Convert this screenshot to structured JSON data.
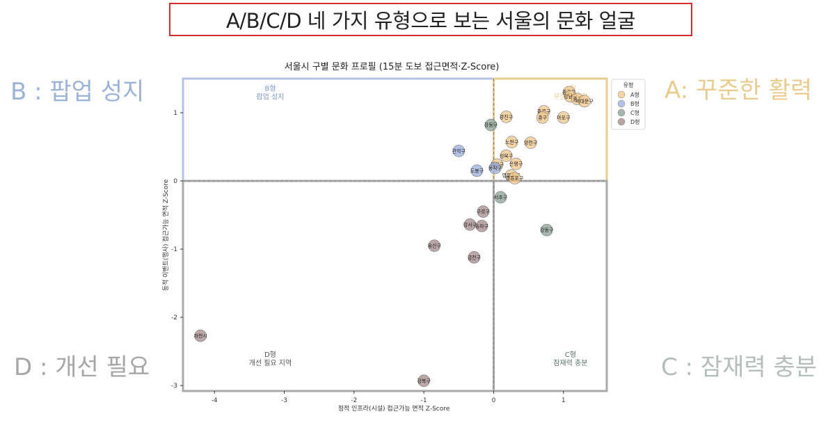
{
  "banner_title": "A/B/C/D 네 가지 유형으로 보는 서울의 문화 얼굴",
  "side_labels": {
    "A": "A: 꾸준한 활력",
    "B": "B : 팝업 성지",
    "C": "C : 잠재력 충분",
    "D": "D : 개선 필요"
  },
  "colors": {
    "A": "#f2c98f",
    "B": "#9fb2de",
    "C": "#8ea597",
    "D": "#a88d8f",
    "A_box": "#ebcc8f",
    "B_box": "#b3c3e3",
    "CD_box": "#a9a9a9",
    "banner_border": "#d22b2b"
  },
  "chart_data": {
    "type": "scatter",
    "title": "서울시 구별 문화 프로필 (15분 도보 접근면적·Z-Score)",
    "xlabel": "정적 인프라(시설) 접근가능 면적 Z-Score",
    "ylabel": "동적 이벤트(행사) 접근가능 면적 Z-Score",
    "xlim": [
      -4.45,
      1.62
    ],
    "ylim": [
      -3.08,
      1.5
    ],
    "x_ticks": [
      -4,
      -3,
      -2,
      -1,
      0,
      1
    ],
    "y_ticks": [
      -3,
      -2,
      -1,
      0,
      1
    ],
    "reference_lines": {
      "x": 0,
      "y": 0
    },
    "grid": false,
    "legend": {
      "title": "유형",
      "position": "top-right",
      "entries": [
        "A형",
        "B형",
        "C형",
        "D형"
      ]
    },
    "quadrant_labels": {
      "A": [
        "A형",
        "꾸준한 활력"
      ],
      "B": [
        "B형",
        "팝업 성지"
      ],
      "C": [
        "C형",
        "잠재력 충분"
      ],
      "D": [
        "D형",
        "개선 필요 지역"
      ]
    },
    "series": [
      {
        "name": "A형",
        "points": [
          {
            "label": "종로구",
            "x": 1.08,
            "y": 1.3
          },
          {
            "label": "강남구",
            "x": 1.1,
            "y": 1.24
          },
          {
            "label": "중구",
            "x": 1.2,
            "y": 1.2
          },
          {
            "label": "서대문구",
            "x": 1.3,
            "y": 1.17
          },
          {
            "label": "광진구",
            "x": 0.18,
            "y": 0.94
          },
          {
            "label": "종로구",
            "x": 0.72,
            "y": 1.02
          },
          {
            "label": "중구",
            "x": 0.7,
            "y": 0.93
          },
          {
            "label": "마포구",
            "x": 1.0,
            "y": 0.93
          },
          {
            "label": "노원구",
            "x": 0.26,
            "y": 0.57
          },
          {
            "label": "양천구",
            "x": 0.53,
            "y": 0.56
          },
          {
            "label": "성북구",
            "x": 0.18,
            "y": 0.37
          },
          {
            "label": "중랑구",
            "x": 0.05,
            "y": 0.24
          },
          {
            "label": "은평구",
            "x": 0.32,
            "y": 0.25
          },
          {
            "label": "영등포구",
            "x": 0.25,
            "y": 0.08
          },
          {
            "label": "영등포구",
            "x": 0.3,
            "y": 0.04
          }
        ]
      },
      {
        "name": "B형",
        "points": [
          {
            "label": "관악구",
            "x": -0.5,
            "y": 0.44
          },
          {
            "label": "도봉구",
            "x": -0.24,
            "y": 0.15
          },
          {
            "label": "동작구",
            "x": 0.02,
            "y": 0.19
          }
        ]
      },
      {
        "name": "C형",
        "points": [
          {
            "label": "강동구",
            "x": -0.04,
            "y": 0.82
          },
          {
            "label": "서초구",
            "x": 0.1,
            "y": -0.24
          },
          {
            "label": "강동구",
            "x": 0.76,
            "y": -0.72
          }
        ]
      },
      {
        "name": "D형",
        "points": [
          {
            "label": "구로구",
            "x": -0.15,
            "y": -0.45
          },
          {
            "label": "강서구",
            "x": -0.34,
            "y": -0.64
          },
          {
            "label": "송파구",
            "x": -0.17,
            "y": -0.66
          },
          {
            "label": "용산구",
            "x": -0.85,
            "y": -0.95
          },
          {
            "label": "금천구",
            "x": -0.28,
            "y": -1.12
          },
          {
            "label": "과천시",
            "x": -4.2,
            "y": -2.27
          },
          {
            "label": "강북구",
            "x": -1.0,
            "y": -2.93
          }
        ]
      }
    ]
  }
}
